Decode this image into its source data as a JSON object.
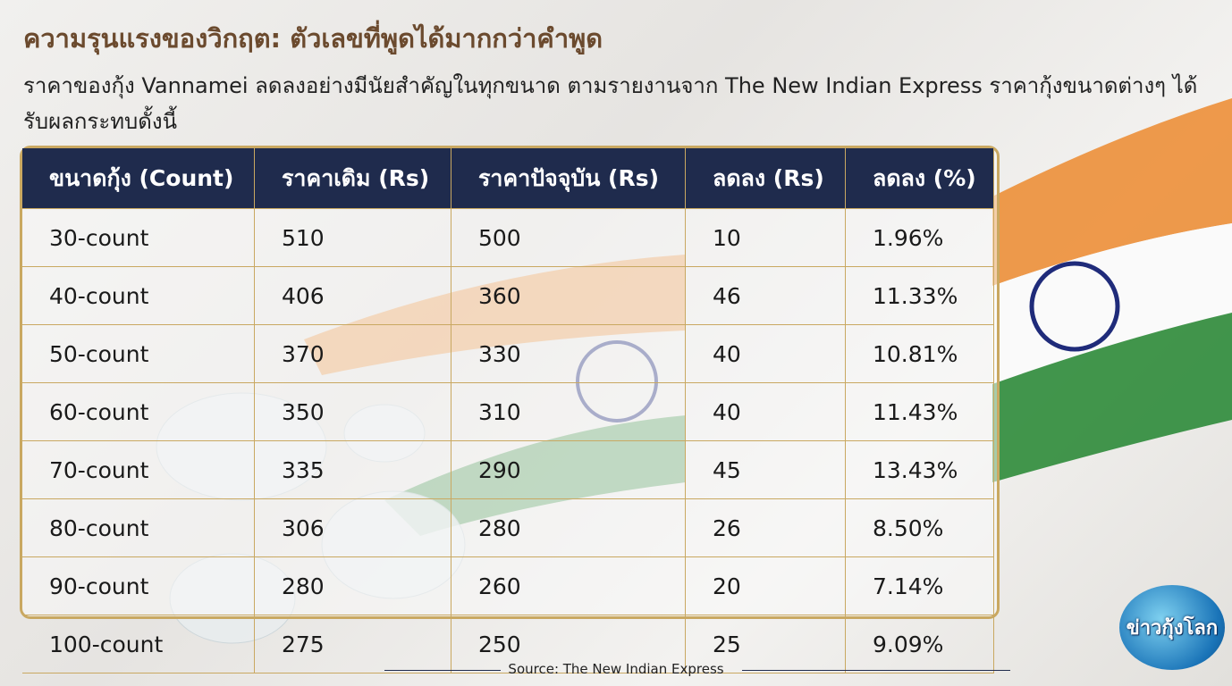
{
  "header": {
    "title": "ความรุนแรงของวิกฤต: ตัวเลขที่พูดได้มากกว่าคำพูด",
    "subtitle": "ราคาของกุ้ง Vannamei ลดลงอย่างมีนัยสำคัญในทุกขนาด ตามรายงานจาก The New Indian Express ราคากุ้งขนาดต่างๆ ได้รับผลกระทบดั้งนี้"
  },
  "table": {
    "columns": [
      "ขนาดกุ้ง (Count)",
      "ราคาเดิม (Rs)",
      "ราคาปัจจุบัน (Rs)",
      "ลดลง (Rs)",
      "ลดลง (%)"
    ],
    "rows": [
      [
        "30-count",
        "510",
        "500",
        "10",
        "1.96%"
      ],
      [
        "40-count",
        "406",
        "360",
        "46",
        "11.33%"
      ],
      [
        "50-count",
        "370",
        "330",
        "40",
        "10.81%"
      ],
      [
        "60-count",
        "350",
        "310",
        "40",
        "11.43%"
      ],
      [
        "70-count",
        "335",
        "290",
        "45",
        "13.43%"
      ],
      [
        "80-count",
        "306",
        "280",
        "26",
        "8.50%"
      ],
      [
        "90-count",
        "280",
        "260",
        "20",
        "7.14%"
      ],
      [
        "100-count",
        "275",
        "250",
        "25",
        "9.09%"
      ]
    ]
  },
  "footer": {
    "source": "Source: The New Indian Express",
    "logo": "ข่าวกุ้งโลก"
  }
}
